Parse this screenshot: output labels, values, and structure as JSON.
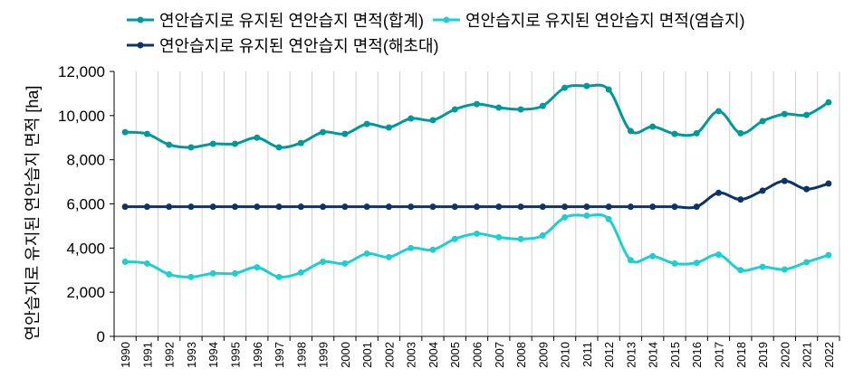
{
  "chart_data": {
    "type": "line",
    "title": "",
    "xlabel": "",
    "ylabel": "연안습지로 유지된 연안습지 면적 [ha]",
    "ylim": [
      0,
      12000
    ],
    "yticks": [
      "0",
      "2,000",
      "4,000",
      "6,000",
      "8,000",
      "10,000",
      "12,000"
    ],
    "x": [
      "1990",
      "1991",
      "1992",
      "1993",
      "1994",
      "1995",
      "1996",
      "1997",
      "1998",
      "1999",
      "2000",
      "2001",
      "2002",
      "2003",
      "2004",
      "2005",
      "2006",
      "2007",
      "2008",
      "2009",
      "2010",
      "2011",
      "2012",
      "2013",
      "2014",
      "2015",
      "2016",
      "2017",
      "2018",
      "2019",
      "2020",
      "2021",
      "2022"
    ],
    "legend_position": "top",
    "grid": "vertical",
    "series": [
      {
        "name": "연안습지로 유지된 연안습지 면적(합계)",
        "color": "#009999",
        "values": [
          9250,
          9170,
          8680,
          8560,
          8720,
          8720,
          9000,
          8560,
          8760,
          9250,
          9170,
          9620,
          9460,
          9870,
          9790,
          10280,
          10520,
          10360,
          10280,
          10440,
          11260,
          11340,
          11180,
          9300,
          9500,
          9170,
          9200,
          10200,
          9200,
          9750,
          10070,
          10030,
          10600
        ]
      },
      {
        "name": "연안습지로 유지된 연안습지 면적(염습지)",
        "color": "#1ecfcf",
        "values": [
          3380,
          3300,
          2810,
          2690,
          2850,
          2850,
          3130,
          2690,
          2890,
          3380,
          3300,
          3750,
          3590,
          4000,
          3920,
          4410,
          4650,
          4490,
          4410,
          4570,
          5390,
          5470,
          5310,
          3450,
          3630,
          3300,
          3330,
          3700,
          3000,
          3150,
          3030,
          3360,
          3680
        ]
      },
      {
        "name": "연안습지로 유지된 연안습지 면적(해초대)",
        "color": "#0c3466",
        "values": [
          5870,
          5870,
          5870,
          5870,
          5870,
          5870,
          5870,
          5870,
          5870,
          5870,
          5870,
          5870,
          5870,
          5870,
          5870,
          5870,
          5870,
          5870,
          5870,
          5870,
          5870,
          5870,
          5870,
          5870,
          5870,
          5870,
          5870,
          6500,
          6200,
          6600,
          7040,
          6670,
          6920
        ]
      }
    ]
  }
}
